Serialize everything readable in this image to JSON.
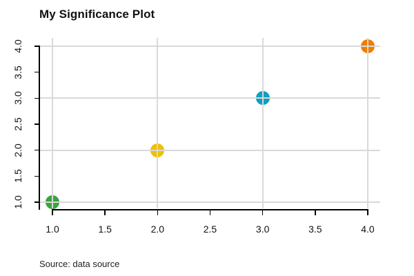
{
  "title": "My Significance Plot",
  "source": "Source: data source",
  "chart_data": {
    "type": "scatter",
    "title": "My Significance Plot",
    "caption": "Source: data source",
    "x": [
      1,
      2,
      3,
      4
    ],
    "y": [
      1,
      2,
      3,
      4
    ],
    "points": [
      {
        "x": 1,
        "y": 1,
        "color": "#3aa43e",
        "color_name": "green"
      },
      {
        "x": 2,
        "y": 2,
        "color": "#efc000",
        "color_name": "gold"
      },
      {
        "x": 3,
        "y": 3,
        "color": "#0e9fc1",
        "color_name": "teal-blue"
      },
      {
        "x": 4,
        "y": 4,
        "color": "#ee7d00",
        "color_name": "orange"
      }
    ],
    "x_tick_labels": [
      "1.0",
      "1.5",
      "2.0",
      "2.5",
      "3.0",
      "3.5",
      "4.0"
    ],
    "y_tick_labels": [
      "1.0",
      "1.5",
      "2.0",
      "2.5",
      "3.0",
      "3.5",
      "4.0"
    ],
    "xlim": [
      1,
      4
    ],
    "ylim": [
      1,
      4
    ],
    "xlabel": "",
    "ylabel": "",
    "grid": {
      "on": true,
      "at": [
        1,
        2,
        3,
        4
      ],
      "color": "#d9d9d9",
      "drawn_over_points": true
    },
    "axis_color": "#000000",
    "background": "#ffffff",
    "legend": null
  }
}
